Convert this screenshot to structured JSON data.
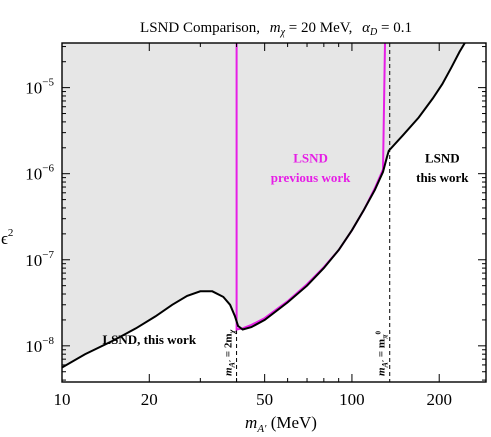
{
  "chart_data": {
    "type": "line",
    "title": "LSND Comparison,  m_χ = 20 MeV,  α_D = 0.1",
    "title_parts": {
      "prefix": "LSND Comparison,",
      "mchi_symbol": "m",
      "mchi_sub": "χ",
      "mchi_value": " = 20 MeV,",
      "alpha_symbol": "α",
      "alpha_sub": "D",
      "alpha_value": " = 0.1"
    },
    "xlabel": {
      "symbol": "m",
      "sub": "A′",
      "unit": " (MeV)"
    },
    "ylabel": {
      "symbol": "ϵ",
      "sup": "2"
    },
    "x_scale": "log",
    "y_scale": "log",
    "xlim": [
      10,
      290
    ],
    "ylim": [
      3.8e-09,
      3.3e-05
    ],
    "x_ticks": [
      {
        "value": 10,
        "label": "10"
      },
      {
        "value": 20,
        "label": "20"
      },
      {
        "value": 50,
        "label": "50"
      },
      {
        "value": 100,
        "label": "100"
      },
      {
        "value": 200,
        "label": "200"
      }
    ],
    "y_ticks": [
      {
        "value": 1e-08,
        "base": "10",
        "exp": "−8"
      },
      {
        "value": 1e-07,
        "base": "10",
        "exp": "−7"
      },
      {
        "value": 1e-06,
        "base": "10",
        "exp": "−6"
      },
      {
        "value": 1e-05,
        "base": "10",
        "exp": "−5"
      }
    ],
    "grid": false,
    "shaded_region_color": "#e6e6e6",
    "series": [
      {
        "name": "LSND, this work",
        "color": "#000000",
        "points": [
          [
            10,
            5.6e-09
          ],
          [
            12,
            8e-09
          ],
          [
            15,
            1.15e-08
          ],
          [
            18,
            1.6e-08
          ],
          [
            21,
            2.2e-08
          ],
          [
            24,
            3e-08
          ],
          [
            27,
            3.8e-08
          ],
          [
            30,
            4.3e-08
          ],
          [
            33,
            4.3e-08
          ],
          [
            36,
            3.7e-08
          ],
          [
            38,
            3e-08
          ],
          [
            39.5,
            2.2e-08
          ],
          [
            40.5,
            1.7e-08
          ],
          [
            42,
            1.55e-08
          ],
          [
            45,
            1.65e-08
          ],
          [
            50,
            2e-08
          ],
          [
            60,
            3.2e-08
          ],
          [
            70,
            5e-08
          ],
          [
            80,
            8e-08
          ],
          [
            90,
            1.3e-07
          ],
          [
            100,
            2.2e-07
          ],
          [
            110,
            3.8e-07
          ],
          [
            120,
            6.5e-07
          ],
          [
            128,
            1.05e-06
          ],
          [
            132,
            1.55e-06
          ],
          [
            134,
            1.85e-06
          ],
          [
            150,
            2.8e-06
          ],
          [
            170,
            4.5e-06
          ],
          [
            190,
            7.5e-06
          ],
          [
            205,
            1.1e-05
          ],
          [
            220,
            1.7e-05
          ],
          [
            235,
            2.6e-05
          ],
          [
            245,
            3.3e-05
          ]
        ]
      },
      {
        "name": "LSND previous work",
        "color": "#e61ee6",
        "points": [
          [
            40,
            3.3e-05
          ],
          [
            40,
            1.55e-08
          ],
          [
            42,
            1.6e-08
          ],
          [
            45,
            1.75e-08
          ],
          [
            50,
            2.1e-08
          ],
          [
            60,
            3.3e-08
          ],
          [
            70,
            5.2e-08
          ],
          [
            80,
            8.2e-08
          ],
          [
            90,
            1.3e-07
          ],
          [
            100,
            2.2e-07
          ],
          [
            110,
            3.8e-07
          ],
          [
            120,
            6.8e-07
          ],
          [
            128,
            1.12e-06
          ],
          [
            129,
            6e-06
          ],
          [
            130,
            3.3e-05
          ]
        ]
      }
    ],
    "vertical_lines": [
      {
        "x": 40,
        "label_symbol": "m",
        "label_sub": "A′",
        "label_rhs": " = 2m",
        "label_rhs_sub": "χ"
      },
      {
        "x": 135,
        "label_symbol": "m",
        "label_sub": "A′",
        "label_rhs": " = m",
        "label_rhs_sub": "π",
        "label_rhs_sup": "0"
      }
    ],
    "annotations": [
      {
        "text": "LSND, this work",
        "color": "#000000",
        "x": 20,
        "y": 1.05e-08
      },
      {
        "text": "LSND",
        "color": "#e61ee6",
        "x": 72,
        "y": 1.35e-06
      },
      {
        "text": "previous work",
        "color": "#e61ee6",
        "x": 72,
        "y": 8e-07
      },
      {
        "text": "LSND",
        "color": "#000000",
        "x": 205,
        "y": 1.35e-06
      },
      {
        "text": "this work",
        "color": "#000000",
        "x": 205,
        "y": 8e-07
      }
    ]
  }
}
